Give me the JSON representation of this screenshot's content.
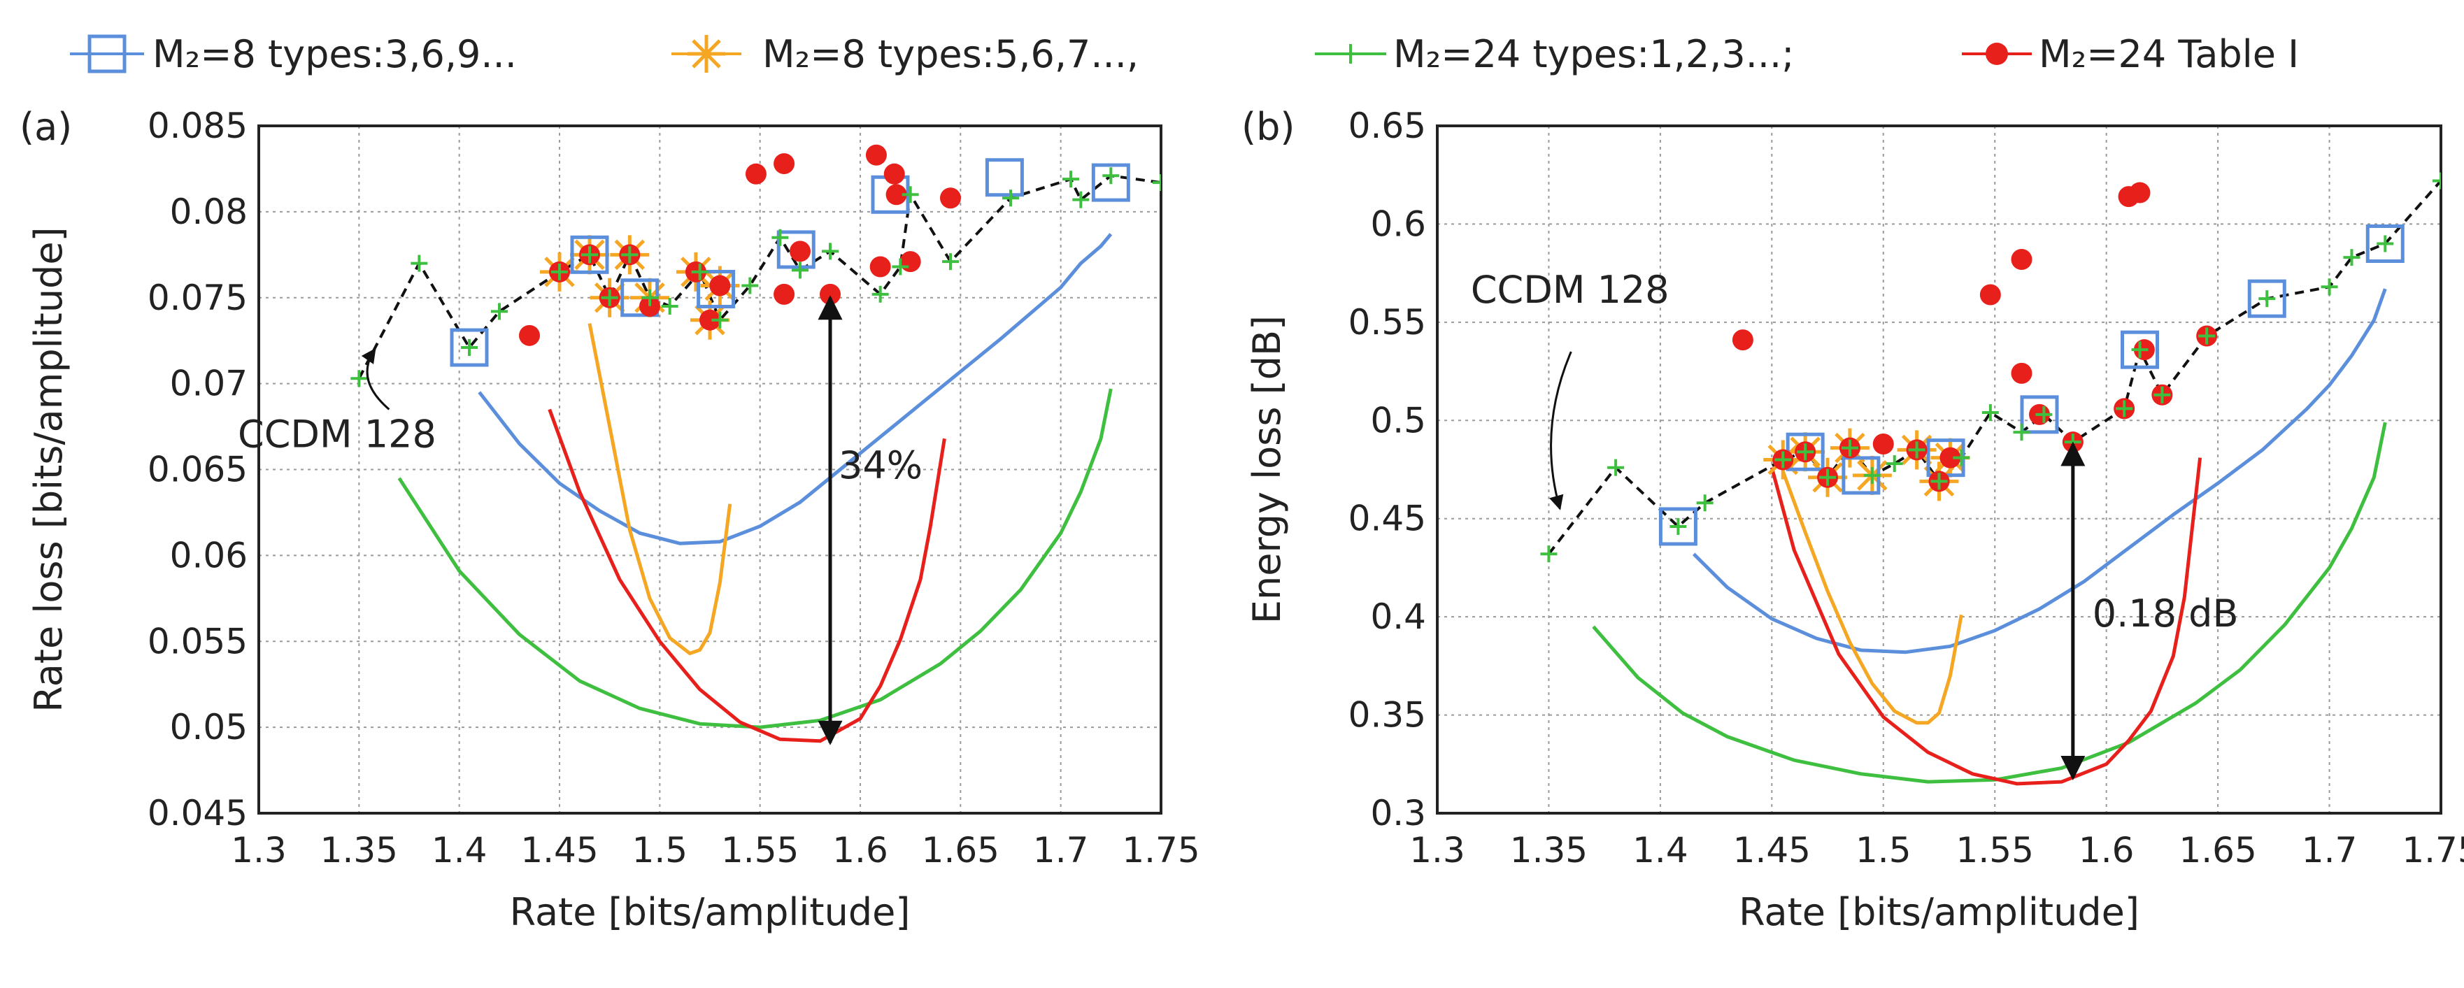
{
  "legend": [
    {
      "marker": "square",
      "color": "#5b8fdc",
      "label": "M₂=8  types:3,6,9..."
    },
    {
      "marker": "star",
      "color": "#f5a623",
      "label": "M₂=8  types:5,6,7...,"
    },
    {
      "marker": "plus",
      "color": "#3fbf3f",
      "label": "M₂=24 types:1,2,3...;"
    },
    {
      "marker": "dot",
      "color": "#e8201b",
      "label": "M₂=24 Table I"
    }
  ],
  "colors": {
    "blue": "#5b8fdc",
    "orange": "#f5a623",
    "green": "#3fbf3f",
    "red": "#e8201b",
    "ccdm": "#111111"
  },
  "chart_data": [
    {
      "type": "line",
      "panel_label": "(a)",
      "xlabel": "Rate [bits/amplitude]",
      "ylabel": "Rate loss [bits/amplitude]",
      "xlim": [
        1.3,
        1.75
      ],
      "ylim": [
        0.045,
        0.085
      ],
      "xticks": [
        "1.3",
        "1.35",
        "1.4",
        "1.45",
        "1.5",
        "1.55",
        "1.6",
        "1.65",
        "1.7",
        "1.75"
      ],
      "yticks": [
        "0.045",
        "0.05",
        "0.055",
        "0.06",
        "0.065",
        "0.07",
        "0.075",
        "0.08",
        "0.085"
      ],
      "annotations": [
        {
          "id": "ccdm",
          "text": "CCDM 128",
          "x": 1.3,
          "y": 0.0663,
          "arrow_from": [
            1.365,
            0.0685
          ],
          "arrow_to": [
            1.358,
            0.072
          ]
        },
        {
          "id": "gap",
          "text": "34%",
          "x": 1.585,
          "y": 0.0645,
          "arrow_x": 1.585,
          "y_top": 0.075,
          "y_bottom": 0.0491
        }
      ],
      "series": [
        {
          "name": "CCDM 128",
          "role": "ccdm",
          "x": [
            1.35,
            1.38,
            1.405,
            1.42,
            1.45,
            1.465,
            1.475,
            1.485,
            1.495,
            1.505,
            1.52,
            1.53,
            1.545,
            1.56,
            1.57,
            1.585,
            1.61,
            1.62,
            1.625,
            1.645,
            1.675,
            1.705,
            1.71,
            1.725,
            1.75
          ],
          "y": [
            0.0703,
            0.077,
            0.0721,
            0.0742,
            0.0765,
            0.0775,
            0.075,
            0.0775,
            0.075,
            0.0745,
            0.0765,
            0.0737,
            0.0757,
            0.0785,
            0.0766,
            0.0777,
            0.0752,
            0.0768,
            0.081,
            0.0771,
            0.0808,
            0.0819,
            0.0807,
            0.0821,
            0.0817
          ]
        },
        {
          "name": "M2=8 types:3,6,9... curve",
          "role": "curve",
          "color": "#5b8fdc",
          "x": [
            1.41,
            1.43,
            1.45,
            1.47,
            1.49,
            1.51,
            1.53,
            1.55,
            1.57,
            1.59,
            1.61,
            1.63,
            1.65,
            1.67,
            1.69,
            1.7,
            1.71,
            1.72,
            1.725
          ],
          "y": [
            0.0695,
            0.0665,
            0.0642,
            0.0626,
            0.0613,
            0.0607,
            0.0608,
            0.0617,
            0.0631,
            0.065,
            0.0669,
            0.0688,
            0.0707,
            0.0726,
            0.0746,
            0.0756,
            0.077,
            0.078,
            0.0787
          ]
        },
        {
          "name": "M2=8 types:5,6,7... curve",
          "role": "curve",
          "color": "#f5a623",
          "x": [
            1.465,
            1.475,
            1.485,
            1.495,
            1.505,
            1.515,
            1.52,
            1.525,
            1.53,
            1.535
          ],
          "y": [
            0.0735,
            0.0675,
            0.0615,
            0.0575,
            0.0552,
            0.0543,
            0.0545,
            0.0555,
            0.0584,
            0.063
          ]
        },
        {
          "name": "M2=24 types:1,2,3... curve",
          "role": "curve",
          "color": "#3fbf3f",
          "x": [
            1.37,
            1.4,
            1.43,
            1.46,
            1.49,
            1.52,
            1.55,
            1.58,
            1.61,
            1.64,
            1.66,
            1.68,
            1.7,
            1.71,
            1.72,
            1.725
          ],
          "y": [
            0.0645,
            0.0591,
            0.0554,
            0.0527,
            0.0511,
            0.0502,
            0.05,
            0.0504,
            0.0516,
            0.0537,
            0.0556,
            0.058,
            0.0613,
            0.0637,
            0.0668,
            0.0697
          ]
        },
        {
          "name": "M2=24 Table I curve",
          "role": "curve",
          "color": "#e8201b",
          "x": [
            1.445,
            1.46,
            1.48,
            1.5,
            1.52,
            1.54,
            1.56,
            1.58,
            1.6,
            1.61,
            1.62,
            1.63,
            1.635,
            1.642
          ],
          "y": [
            0.0685,
            0.0637,
            0.0586,
            0.055,
            0.0522,
            0.0503,
            0.0493,
            0.0492,
            0.0505,
            0.0524,
            0.0551,
            0.0586,
            0.0617,
            0.0668
          ]
        },
        {
          "name": "M2=8 types:3,6,9...",
          "role": "markers",
          "marker": "square",
          "color": "#5b8fdc",
          "x": [
            1.405,
            1.465,
            1.49,
            1.528,
            1.568,
            1.615,
            1.672,
            1.725
          ],
          "y": [
            0.0721,
            0.0775,
            0.075,
            0.0755,
            0.0778,
            0.081,
            0.082,
            0.0817
          ]
        },
        {
          "name": "M2=8 types:5,6,7...",
          "role": "markers",
          "marker": "star",
          "color": "#f5a623",
          "x": [
            1.45,
            1.465,
            1.475,
            1.485,
            1.495,
            1.518,
            1.525,
            1.53
          ],
          "y": [
            0.0765,
            0.0775,
            0.075,
            0.0775,
            0.075,
            0.0765,
            0.0737,
            0.0757
          ]
        },
        {
          "name": "M2=24 Table I",
          "role": "markers",
          "marker": "dot",
          "color": "#e8201b",
          "x": [
            1.435,
            1.45,
            1.465,
            1.475,
            1.485,
            1.495,
            1.518,
            1.525,
            1.53,
            1.548,
            1.562,
            1.562,
            1.57,
            1.585,
            1.61,
            1.608,
            1.617,
            1.618,
            1.625,
            1.645
          ],
          "y": [
            0.0728,
            0.0765,
            0.0775,
            0.075,
            0.0775,
            0.0745,
            0.0765,
            0.0737,
            0.0757,
            0.0822,
            0.0828,
            0.0752,
            0.0777,
            0.0752,
            0.0768,
            0.0833,
            0.0822,
            0.081,
            0.0771,
            0.0808
          ]
        }
      ]
    },
    {
      "type": "line",
      "panel_label": "(b)",
      "xlabel": "Rate [bits/amplitude]",
      "ylabel": "Energy loss [dB]",
      "xlim": [
        1.3,
        1.75
      ],
      "ylim": [
        0.3,
        0.65
      ],
      "xticks": [
        "1.3",
        "1.35",
        "1.4",
        "1.45",
        "1.5",
        "1.55",
        "1.6",
        "1.65",
        "1.7",
        "1.75"
      ],
      "yticks": [
        "0.3",
        "0.35",
        "0.4",
        "0.45",
        "0.5",
        "0.55",
        "0.6",
        "0.65"
      ],
      "annotations": [
        {
          "id": "ccdm",
          "text": "CCDM 128",
          "x": 1.315,
          "y": 0.56,
          "arrow_from": [
            1.36,
            0.535
          ],
          "arrow_to": [
            1.355,
            0.455
          ]
        },
        {
          "id": "gap",
          "text": "0.18 dB",
          "x": 1.59,
          "y": 0.395,
          "arrow_x": 1.585,
          "y_top": 0.488,
          "y_bottom": 0.318
        }
      ],
      "series": [
        {
          "name": "CCDM 128",
          "role": "ccdm",
          "x": [
            1.35,
            1.38,
            1.408,
            1.42,
            1.455,
            1.465,
            1.475,
            1.485,
            1.495,
            1.505,
            1.515,
            1.525,
            1.535,
            1.548,
            1.562,
            1.572,
            1.585,
            1.608,
            1.615,
            1.625,
            1.645,
            1.672,
            1.7,
            1.71,
            1.725,
            1.75
          ],
          "y": [
            0.432,
            0.476,
            0.446,
            0.458,
            0.48,
            0.484,
            0.471,
            0.486,
            0.472,
            0.478,
            0.485,
            0.469,
            0.481,
            0.504,
            0.494,
            0.503,
            0.489,
            0.506,
            0.536,
            0.513,
            0.543,
            0.562,
            0.568,
            0.583,
            0.59,
            0.622
          ]
        },
        {
          "name": "M2=8 types:3,6,9... curve",
          "role": "curve",
          "color": "#5b8fdc",
          "x": [
            1.415,
            1.43,
            1.45,
            1.47,
            1.49,
            1.51,
            1.53,
            1.55,
            1.57,
            1.59,
            1.61,
            1.63,
            1.65,
            1.67,
            1.69,
            1.7,
            1.71,
            1.72,
            1.725
          ],
          "y": [
            0.432,
            0.415,
            0.399,
            0.389,
            0.383,
            0.382,
            0.385,
            0.393,
            0.404,
            0.418,
            0.435,
            0.452,
            0.468,
            0.485,
            0.506,
            0.518,
            0.533,
            0.551,
            0.567
          ]
        },
        {
          "name": "M2=8 types:5,6,7... curve",
          "role": "curve",
          "color": "#f5a623",
          "x": [
            1.455,
            1.465,
            1.475,
            1.485,
            1.495,
            1.505,
            1.515,
            1.52,
            1.525,
            1.53,
            1.535
          ],
          "y": [
            0.474,
            0.443,
            0.413,
            0.387,
            0.366,
            0.352,
            0.346,
            0.346,
            0.351,
            0.37,
            0.401
          ]
        },
        {
          "name": "M2=24 types:1,2,3... curve",
          "role": "curve",
          "color": "#3fbf3f",
          "x": [
            1.37,
            1.39,
            1.41,
            1.43,
            1.46,
            1.49,
            1.52,
            1.55,
            1.58,
            1.61,
            1.64,
            1.66,
            1.68,
            1.7,
            1.71,
            1.72,
            1.725
          ],
          "y": [
            0.395,
            0.369,
            0.351,
            0.339,
            0.327,
            0.32,
            0.316,
            0.317,
            0.323,
            0.336,
            0.356,
            0.373,
            0.396,
            0.425,
            0.445,
            0.471,
            0.499
          ]
        },
        {
          "name": "M2=24 Table I curve",
          "role": "curve",
          "color": "#e8201b",
          "x": [
            1.45,
            1.46,
            1.48,
            1.5,
            1.52,
            1.54,
            1.56,
            1.58,
            1.6,
            1.61,
            1.62,
            1.63,
            1.635,
            1.642
          ],
          "y": [
            0.476,
            0.434,
            0.381,
            0.349,
            0.331,
            0.32,
            0.315,
            0.316,
            0.325,
            0.337,
            0.352,
            0.38,
            0.41,
            0.481
          ]
        },
        {
          "name": "M2=8 types:3,6,9...",
          "role": "markers",
          "marker": "square",
          "color": "#5b8fdc",
          "x": [
            1.408,
            1.465,
            1.49,
            1.528,
            1.57,
            1.615,
            1.672,
            1.725
          ],
          "y": [
            0.446,
            0.484,
            0.472,
            0.481,
            0.503,
            0.536,
            0.562,
            0.59
          ]
        },
        {
          "name": "M2=8 types:5,6,7...",
          "role": "markers",
          "marker": "star",
          "color": "#f5a623",
          "x": [
            1.455,
            1.465,
            1.475,
            1.485,
            1.495,
            1.515,
            1.525,
            1.53
          ],
          "y": [
            0.48,
            0.484,
            0.471,
            0.486,
            0.472,
            0.485,
            0.469,
            0.481
          ]
        },
        {
          "name": "M2=24 Table I",
          "role": "markers",
          "marker": "dot",
          "color": "#e8201b",
          "x": [
            1.437,
            1.455,
            1.465,
            1.475,
            1.485,
            1.5,
            1.515,
            1.525,
            1.53,
            1.548,
            1.562,
            1.562,
            1.57,
            1.585,
            1.608,
            1.61,
            1.615,
            1.617,
            1.625,
            1.645
          ],
          "y": [
            0.541,
            0.48,
            0.484,
            0.471,
            0.486,
            0.488,
            0.485,
            0.469,
            0.481,
            0.564,
            0.582,
            0.524,
            0.503,
            0.489,
            0.506,
            0.614,
            0.616,
            0.536,
            0.513,
            0.543
          ]
        }
      ]
    }
  ]
}
